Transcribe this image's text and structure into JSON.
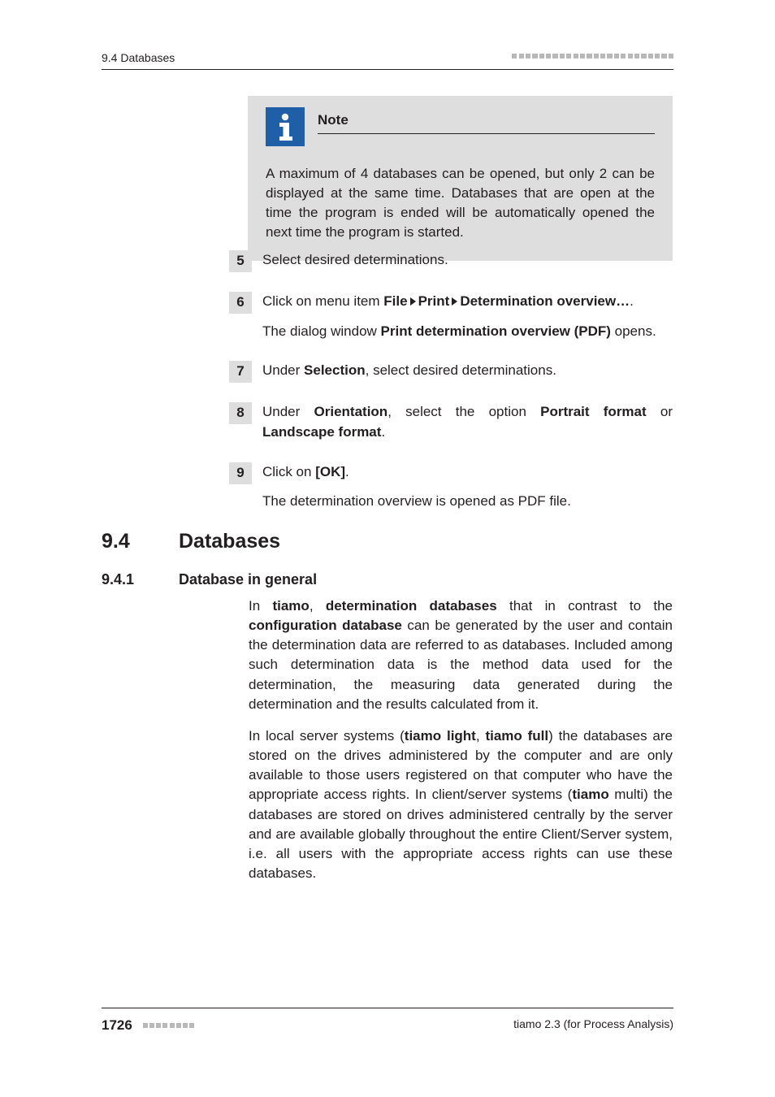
{
  "colors": {
    "text": "#231f20",
    "bg": "#ffffff",
    "box_bg": "#dedede",
    "icon_bg": "#1f5fa8",
    "icon_fg": "#ffffff",
    "dash": "#b9b8b8",
    "rule": "#231f20"
  },
  "typography": {
    "body_fontsize_pt": 12,
    "heading_fontsize_pt": 18,
    "subheading_fontsize_pt": 13,
    "font_family": "sans-serif"
  },
  "header": {
    "left": "9.4 Databases",
    "dash_count": 24
  },
  "note": {
    "title": "Note",
    "body": "A maximum of 4 databases can be opened, but only 2 can be displayed at the same time. Databases that are open at the time the program is ended will be automatically opened the next time the program is started."
  },
  "steps": [
    {
      "n": "5",
      "lines": [
        {
          "runs": [
            {
              "t": "Select desired determinations."
            }
          ]
        }
      ]
    },
    {
      "n": "6",
      "lines": [
        {
          "runs": [
            {
              "t": "Click on menu item "
            },
            {
              "t": "File",
              "b": true
            },
            {
              "tri": true
            },
            {
              "t": "Print",
              "b": true
            },
            {
              "tri": true
            },
            {
              "t": "Determination overview…",
              "b": true
            },
            {
              "t": "."
            }
          ]
        },
        {
          "runs": [
            {
              "t": "The dialog window "
            },
            {
              "t": "Print determination overview (PDF)",
              "b": true
            },
            {
              "t": " opens."
            }
          ]
        }
      ]
    },
    {
      "n": "7",
      "lines": [
        {
          "runs": [
            {
              "t": "Under "
            },
            {
              "t": "Selection",
              "b": true
            },
            {
              "t": ", select desired determinations."
            }
          ]
        }
      ]
    },
    {
      "n": "8",
      "lines": [
        {
          "runs": [
            {
              "t": "Under "
            },
            {
              "t": "Orientation",
              "b": true
            },
            {
              "t": ", select the option "
            },
            {
              "t": "Portrait format",
              "b": true
            },
            {
              "t": " or "
            },
            {
              "t": "Landscape format",
              "b": true
            },
            {
              "t": "."
            }
          ]
        }
      ]
    },
    {
      "n": "9",
      "lines": [
        {
          "runs": [
            {
              "t": "Click on "
            },
            {
              "t": "[OK]",
              "b": true
            },
            {
              "t": "."
            }
          ]
        },
        {
          "runs": [
            {
              "t": "The determination overview is opened as PDF file."
            }
          ]
        }
      ]
    }
  ],
  "section": {
    "num": "9.4",
    "title": "Databases"
  },
  "subsection": {
    "num": "9.4.1",
    "title": "Database in general"
  },
  "para1": {
    "runs": [
      {
        "t": "In "
      },
      {
        "t": "tiamo",
        "b": true
      },
      {
        "t": ", "
      },
      {
        "t": "determination databases",
        "b": true
      },
      {
        "t": " that in contrast to the "
      },
      {
        "t": "configuration database",
        "b": true
      },
      {
        "t": " can be generated by the user and contain the determination data are referred to as databases. Included among such determination data is the method data used for the determination, the measuring data generated during the determination and the results calculated from it."
      }
    ]
  },
  "para2": {
    "runs": [
      {
        "t": "In local server systems ("
      },
      {
        "t": "tiamo light",
        "b": true
      },
      {
        "t": ", "
      },
      {
        "t": "tiamo full",
        "b": true
      },
      {
        "t": ") the databases are stored on the drives administered by the computer and are only available to those users registered on that computer who have the appropriate access rights. In client/server systems ("
      },
      {
        "t": "tiamo",
        "b": true
      },
      {
        "t": " multi) the databases are stored on drives administered centrally by the server and are available globally throughout the entire Client/Server system, i.e. all users with the appropriate access rights can use these databases."
      }
    ]
  },
  "footer": {
    "page": "1726",
    "dash_count": 8,
    "right": "tiamo 2.3 (for Process Analysis)"
  }
}
